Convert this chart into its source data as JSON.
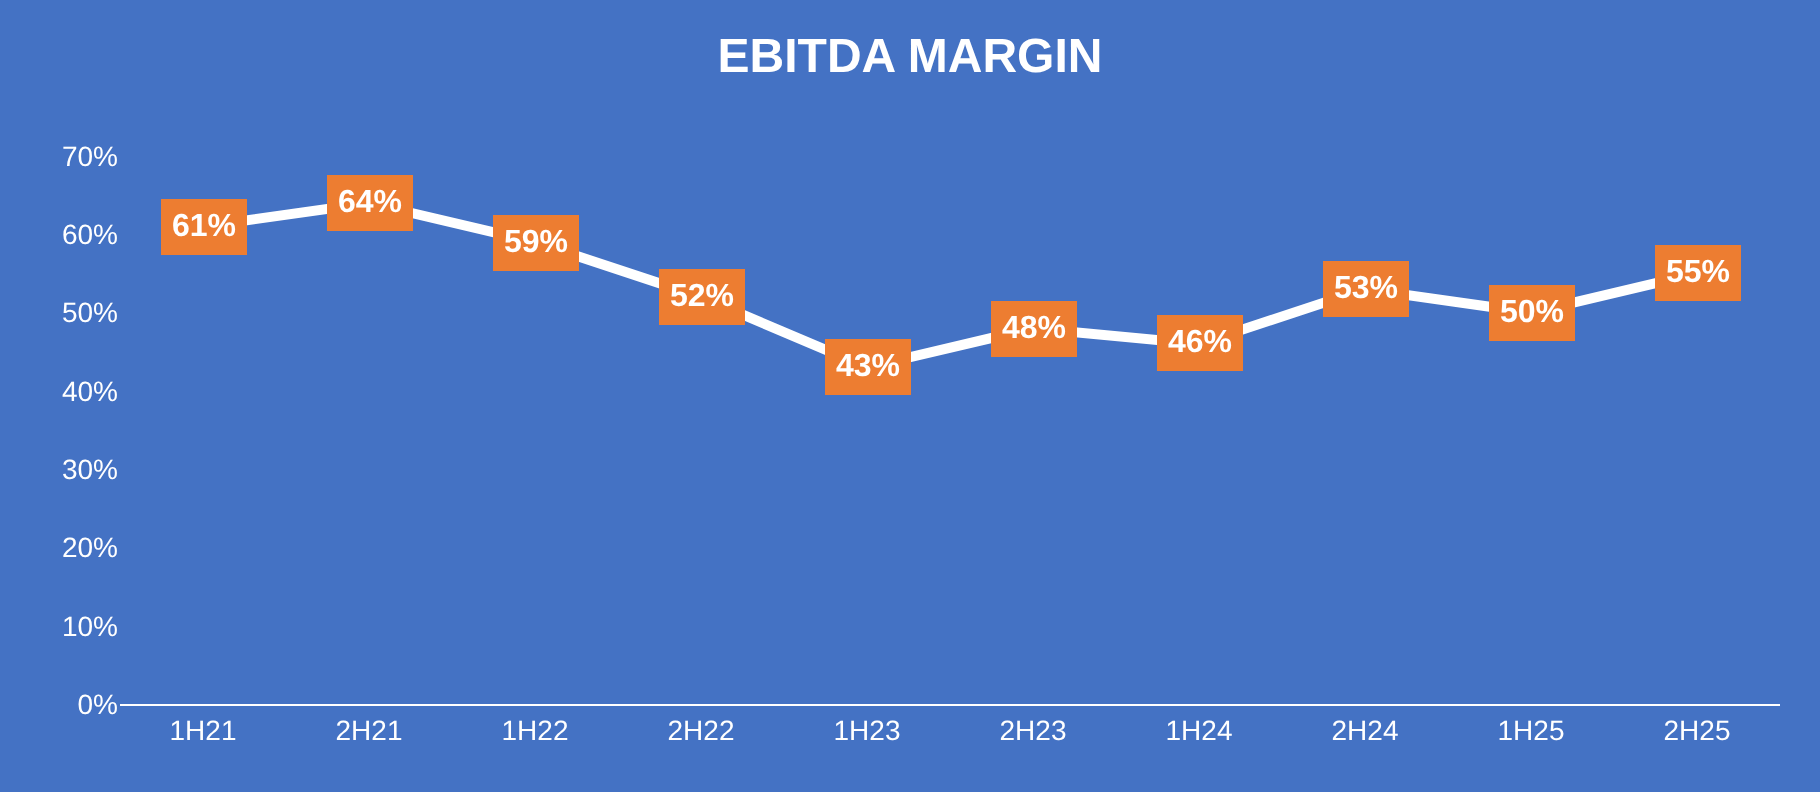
{
  "chart_data": {
    "type": "line",
    "title": "EBITDA MARGIN",
    "categories": [
      "1H21",
      "2H21",
      "1H22",
      "2H22",
      "1H23",
      "2H23",
      "1H24",
      "2H24",
      "1H25",
      "2H25"
    ],
    "series": [
      {
        "color": "#ffffff",
        "values": [
          61,
          64,
          59,
          52,
          43,
          48,
          46,
          53,
          50,
          55
        ],
        "value_labels": [
          "61%",
          "64%",
          "59%",
          "52%",
          "43%",
          "48%",
          "46%",
          "53%",
          "50%",
          "55%"
        ]
      }
    ],
    "ylim": [
      0,
      70
    ],
    "yticks": [
      {
        "value": 0,
        "label": "0%"
      },
      {
        "value": 10,
        "label": "10%"
      },
      {
        "value": 20,
        "label": "20%"
      },
      {
        "value": 30,
        "label": "30%"
      },
      {
        "value": 40,
        "label": "40%"
      },
      {
        "value": 50,
        "label": "50%"
      },
      {
        "value": 60,
        "label": "60%"
      },
      {
        "value": 70,
        "label": "70%"
      }
    ],
    "grid": false,
    "marker": "square",
    "line_style": "solid"
  }
}
